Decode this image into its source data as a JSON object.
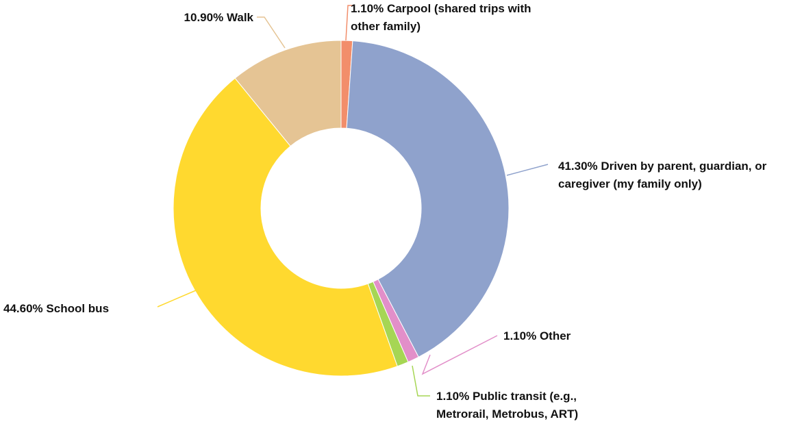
{
  "chart_data": {
    "type": "donut",
    "categories": [
      "Carpool (shared trips with other family)",
      "Driven by parent, guardian, or caregiver (my family only)",
      "Other",
      "Public transit (e.g., Metrorail, Metrobus, ART)",
      "School bus",
      "Walk"
    ],
    "values": [
      1.1,
      41.3,
      1.1,
      1.1,
      44.6,
      10.9
    ],
    "value_labels": [
      "1.10%",
      "41.30%",
      "1.10%",
      "1.10%",
      "44.60%",
      "10.90%"
    ],
    "colors": [
      "#f28e6b",
      "#8fa2cc",
      "#e28fc9",
      "#a6d654",
      "#ffd92f",
      "#e5c494"
    ]
  }
}
